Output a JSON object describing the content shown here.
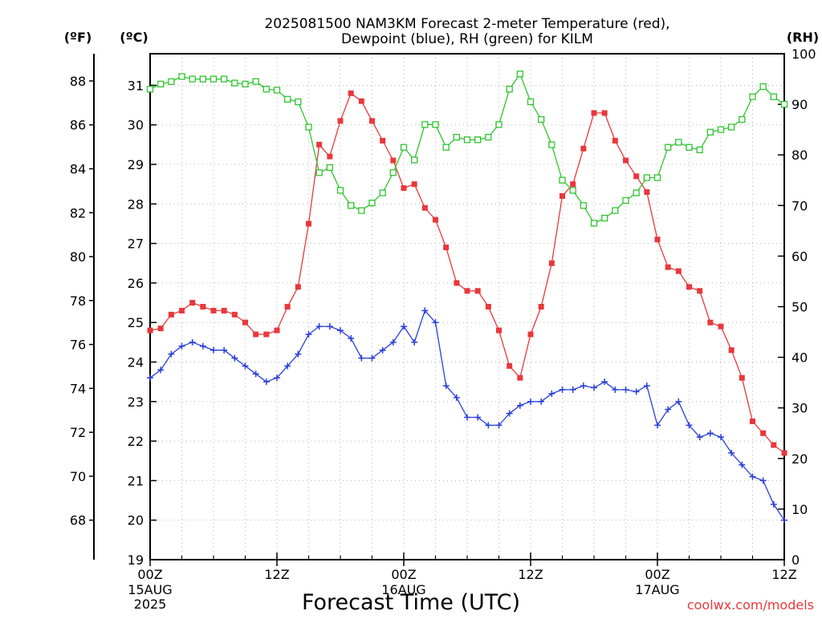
{
  "header": {
    "title_line1": "2025081500 NAM3KM Forecast 2-meter Temperature (red),",
    "title_line2": "Dewpoint (blue), RH (green) for KILM"
  },
  "axis_units": {
    "fahrenheit": "(ºF)",
    "celsius": "(ºC)",
    "rh": "(RH)"
  },
  "footer": {
    "xlabel": "Forecast Time (UTC)",
    "credit": "coolwx.com/models"
  },
  "chart_data": {
    "type": "line",
    "title": "2025081500 NAM3KM Forecast 2-meter Temperature (red), Dewpoint (blue), RH (green) for KILM",
    "xlabel": "Forecast Time (UTC)",
    "x_unit": "forecast hour",
    "xlim": [
      0,
      60
    ],
    "x_ticks": [
      {
        "x": 0,
        "label": "00Z",
        "sub1": "15AUG",
        "sub2": "2025"
      },
      {
        "x": 12,
        "label": "12Z",
        "sub1": "",
        "sub2": ""
      },
      {
        "x": 24,
        "label": "00Z",
        "sub1": "16AUG",
        "sub2": ""
      },
      {
        "x": 36,
        "label": "12Z",
        "sub1": "",
        "sub2": ""
      },
      {
        "x": 48,
        "label": "00Z",
        "sub1": "17AUG",
        "sub2": ""
      },
      {
        "x": 60,
        "label": "12Z",
        "sub1": "",
        "sub2": ""
      }
    ],
    "y_celsius": {
      "label": "(ºC)",
      "range": [
        19,
        31.8
      ],
      "ticks": [
        19,
        20,
        21,
        22,
        23,
        24,
        25,
        26,
        27,
        28,
        29,
        30,
        31
      ]
    },
    "y_fahrenheit": {
      "label": "(ºF)",
      "ticks": [
        68,
        70,
        72,
        74,
        76,
        78,
        80,
        82,
        84,
        86,
        88
      ]
    },
    "y_rh": {
      "label": "(RH)",
      "range": [
        0,
        100
      ],
      "ticks": [
        0,
        10,
        20,
        30,
        40,
        50,
        60,
        70,
        80,
        90,
        100
      ]
    },
    "grid": true,
    "series": [
      {
        "name": "Temperature",
        "unit": "°C",
        "axis": "celsius",
        "color": "#e8383c",
        "marker": "filled-square",
        "x": [
          0,
          1,
          2,
          3,
          4,
          5,
          6,
          7,
          8,
          9,
          10,
          11,
          12,
          13,
          14,
          15,
          16,
          17,
          18,
          19,
          20,
          21,
          22,
          23,
          24,
          25,
          26,
          27,
          28,
          29,
          30,
          31,
          32,
          33,
          34,
          35,
          36,
          37,
          38,
          39,
          40,
          41,
          42,
          43,
          44,
          45,
          46,
          47,
          48,
          49,
          50,
          51,
          52,
          53,
          54,
          55,
          56,
          57,
          58,
          59,
          60
        ],
        "values": [
          24.8,
          24.85,
          25.2,
          25.3,
          25.5,
          25.4,
          25.3,
          25.3,
          25.2,
          25.0,
          24.7,
          24.7,
          24.8,
          25.4,
          25.9,
          27.5,
          29.5,
          29.2,
          30.1,
          30.8,
          30.6,
          30.1,
          29.6,
          29.1,
          28.4,
          28.5,
          27.9,
          27.6,
          26.9,
          26.0,
          25.8,
          25.8,
          25.4,
          24.8,
          23.9,
          23.6,
          24.7,
          25.4,
          26.5,
          28.2,
          28.5,
          29.4,
          30.3,
          30.3,
          29.6,
          29.1,
          28.7,
          28.3,
          27.1,
          26.4,
          26.3,
          25.9,
          25.8,
          25.0,
          24.9,
          24.3,
          23.6,
          22.5,
          22.2,
          21.9,
          21.7
        ]
      },
      {
        "name": "Dewpoint",
        "unit": "°C",
        "axis": "celsius",
        "color": "#2a3fd8",
        "marker": "plus",
        "x": [
          0,
          1,
          2,
          3,
          4,
          5,
          6,
          7,
          8,
          9,
          10,
          11,
          12,
          13,
          14,
          15,
          16,
          17,
          18,
          19,
          20,
          21,
          22,
          23,
          24,
          25,
          26,
          27,
          28,
          29,
          30,
          31,
          32,
          33,
          34,
          35,
          36,
          37,
          38,
          39,
          40,
          41,
          42,
          43,
          44,
          45,
          46,
          47,
          48,
          49,
          50,
          51,
          52,
          53,
          54,
          55,
          56,
          57,
          58,
          59,
          60
        ],
        "values": [
          23.6,
          23.8,
          24.2,
          24.4,
          24.5,
          24.4,
          24.3,
          24.3,
          24.1,
          23.9,
          23.7,
          23.5,
          23.6,
          23.9,
          24.2,
          24.7,
          24.9,
          24.9,
          24.8,
          24.6,
          24.1,
          24.1,
          24.3,
          24.5,
          24.9,
          24.5,
          25.3,
          25.0,
          23.4,
          23.1,
          22.6,
          22.6,
          22.4,
          22.4,
          22.7,
          22.9,
          23.0,
          23.0,
          23.2,
          23.3,
          23.3,
          23.4,
          23.35,
          23.5,
          23.3,
          23.3,
          23.25,
          23.4,
          22.4,
          22.8,
          23.0,
          22.4,
          22.1,
          22.2,
          22.1,
          21.7,
          21.4,
          21.1,
          21.0,
          20.4,
          20.0
        ]
      },
      {
        "name": "RH",
        "unit": "%",
        "axis": "rh",
        "color": "#2ec42e",
        "marker": "open-square",
        "x": [
          0,
          1,
          2,
          3,
          4,
          5,
          6,
          7,
          8,
          9,
          10,
          11,
          12,
          13,
          14,
          15,
          16,
          17,
          18,
          19,
          20,
          21,
          22,
          23,
          24,
          25,
          26,
          27,
          28,
          29,
          30,
          31,
          32,
          33,
          34,
          35,
          36,
          37,
          38,
          39,
          40,
          41,
          42,
          43,
          44,
          45,
          46,
          47,
          48,
          49,
          50,
          51,
          52,
          53,
          54,
          55,
          56,
          57,
          58,
          59,
          60
        ],
        "values": [
          93,
          94,
          94.5,
          95.5,
          95,
          95,
          95,
          95,
          94.2,
          94,
          94.5,
          93,
          92.8,
          91,
          90.5,
          85.5,
          76.5,
          77.5,
          73,
          70,
          69,
          70.5,
          72.5,
          76.5,
          81.5,
          79,
          86,
          86,
          81.5,
          83.5,
          83,
          83,
          83.5,
          86,
          93,
          96,
          90.5,
          87,
          82,
          75,
          73,
          70,
          66.5,
          67.5,
          69,
          71,
          72.5,
          75.5,
          75.5,
          81.5,
          82.5,
          81.5,
          81,
          84.5,
          85,
          85.5,
          87,
          91.5,
          93.5,
          91.5,
          90
        ]
      }
    ]
  }
}
